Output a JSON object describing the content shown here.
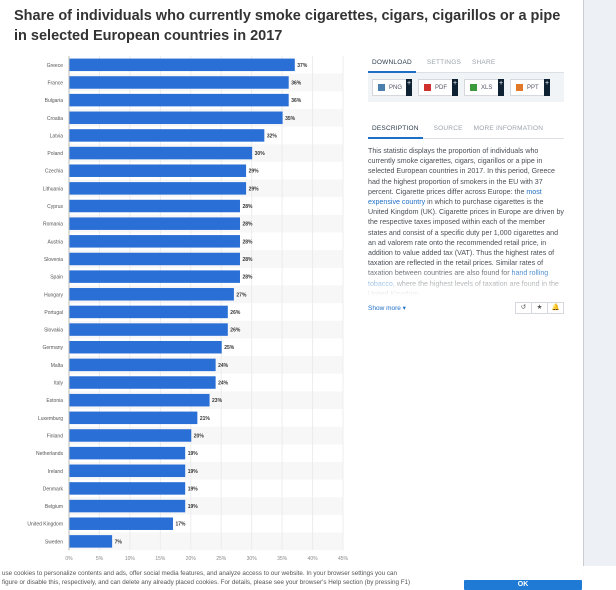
{
  "title": "Share of individuals who currently smoke cigarettes, cigars, cigarillos or a pipe in selected European countries in 2017",
  "colors": {
    "bar": "#2a6fd6",
    "accent": "#1f6fc5"
  },
  "chart_data": {
    "type": "bar",
    "orientation": "horizontal",
    "title": "Share of individuals who currently smoke cigarettes, cigars, cigarillos or a pipe in selected European countries in 2017",
    "xlabel": "",
    "ylabel": "",
    "xlim": [
      0,
      45
    ],
    "x_ticks": [
      "0%",
      "5%",
      "10%",
      "15%",
      "20%",
      "25%",
      "30%",
      "35%",
      "40%",
      "45%"
    ],
    "grid": true,
    "categories": [
      "Greece",
      "France",
      "Bulgaria",
      "Croatia",
      "Latvia",
      "Poland",
      "Czechia",
      "Lithuania",
      "Cyprus",
      "Romania",
      "Austria",
      "Slovenia",
      "Spain",
      "Hungary",
      "Portugal",
      "Slovakia",
      "Germany",
      "Malta",
      "Italy",
      "Estonia",
      "Luxemburg",
      "Finland",
      "Netherlands",
      "Ireland",
      "Denmark",
      "Belgium",
      "United Kingdom",
      "Sweden"
    ],
    "values": [
      37,
      36,
      36,
      35,
      32,
      30,
      29,
      29,
      28,
      28,
      28,
      28,
      28,
      27,
      26,
      26,
      25,
      24,
      24,
      23,
      21,
      20,
      19,
      19,
      19,
      19,
      17,
      7
    ],
    "value_suffix": "%"
  },
  "panel": {
    "tabs": [
      "DOWNLOAD",
      "SETTINGS",
      "SHARE"
    ],
    "downloads": [
      {
        "label": "PNG",
        "icon": "image-icon",
        "color": "#4a7fb0"
      },
      {
        "label": "PDF",
        "icon": "pdf-icon",
        "color": "#d0312d"
      },
      {
        "label": "XLS",
        "icon": "excel-icon",
        "color": "#3c9a3c"
      },
      {
        "label": "PPT",
        "icon": "powerpoint-icon",
        "color": "#e07a2a"
      }
    ],
    "desc_tabs": [
      "DESCRIPTION",
      "SOURCE",
      "MORE INFORMATION"
    ],
    "description_parts": [
      "This statistic displays the proportion of individuals who currently smoke cigarettes, cigars, cigarillos or a pipe in selected European countries in 2017. In this period, Greece had the highest proportion of smokers in the EU with 37 percent. Cigarette prices differ across Europe: the ",
      "most expensive country",
      " in which to purchase cigarettes is the United Kingdom (UK). Cigarette prices in Europe are driven by the respective taxes imposed within each of the member states and consist of a specific duty per 1,000 cigarettes and an ad valorem rate onto the recommended retail price, in addition to value added tax (VAT). Thus the highest rates of taxation are reflected in the retail prices. Similar rates of taxation between countries are also found for ",
      "hand rolling tobacco",
      ", where the highest levels of taxation are found in the United Kingdom."
    ],
    "show_more": "Show more ▾",
    "icon_buttons": [
      "↺",
      "★",
      "🔔"
    ]
  },
  "cookie": {
    "text": "use cookies to personalize contents and ads, offer social media features, and analyze access to our website. In your browser settings you can\nfigure or disable this, respectively, and can delete any already placed cookies. For details, please see your browser's Help section (by pressing F1)",
    "ok": "OK"
  }
}
